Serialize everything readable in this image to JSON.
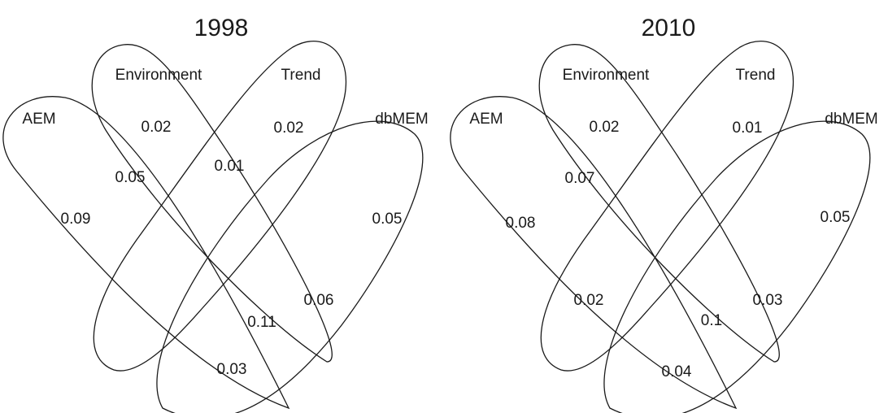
{
  "panels": [
    {
      "title": "1998",
      "sets": {
        "aem": "AEM",
        "environment": "Environment",
        "trend": "Trend",
        "dbmem": "dbMEM"
      },
      "regions": {
        "aem_only": "0.09",
        "environment_only": "0.02",
        "trend_only": "0.02",
        "dbmem_only": "0.05",
        "aem_environment": "0.05",
        "environment_trend": "0.01",
        "trend_dbmem": "0.06",
        "aem_dbmem": "0.03",
        "aem_trend_dbmem": "0.11"
      }
    },
    {
      "title": "2010",
      "sets": {
        "aem": "AEM",
        "environment": "Environment",
        "trend": "Trend",
        "dbmem": "dbMEM"
      },
      "regions": {
        "aem_only": "0.08",
        "environment_only": "0.02",
        "trend_only": "0.01",
        "dbmem_only": "0.05",
        "aem_environment": "0.07",
        "aem_environment_trend": "0.02",
        "trend_dbmem": "0.03",
        "aem_dbmem": "0.04",
        "aem_trend_dbmem": "0.1"
      }
    }
  ]
}
